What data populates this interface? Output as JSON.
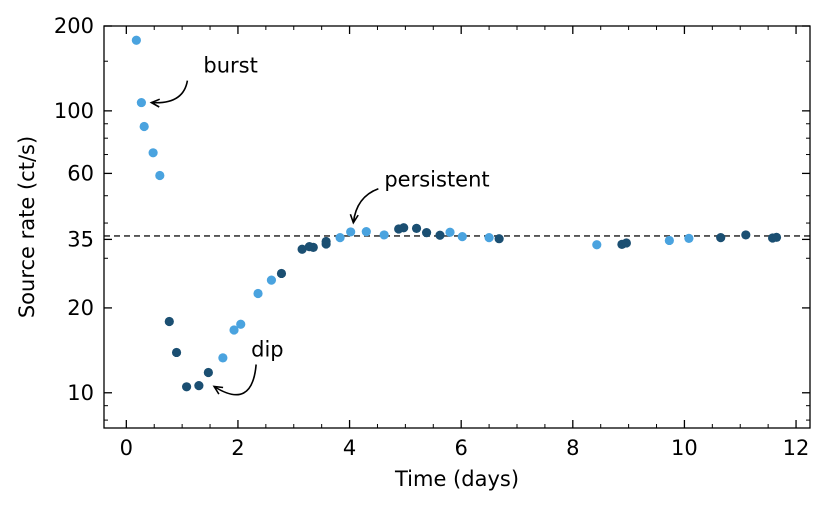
{
  "chart_data": {
    "type": "scatter",
    "title": "",
    "xlabel": "Time (days)",
    "ylabel": "Source rate (ct/s)",
    "xlim": [
      -0.4,
      12.25
    ],
    "ylim": [
      7.5,
      200
    ],
    "yscale": "log",
    "grid": false,
    "x_ticks": [
      0,
      2,
      4,
      6,
      8,
      10,
      12
    ],
    "y_ticks": [
      10,
      20,
      35,
      60,
      100,
      200
    ],
    "colors": {
      "light": "#4aa3df",
      "dark": "#1b4f72",
      "reference_line": "#555555"
    },
    "reference_line": {
      "y": 36,
      "style": "dashed"
    },
    "series": [
      {
        "name": "light",
        "color": "#4aa3df",
        "points": [
          [
            0.18,
            178
          ],
          [
            0.27,
            107
          ],
          [
            0.32,
            88
          ],
          [
            0.48,
            71
          ],
          [
            0.6,
            59
          ],
          [
            1.73,
            13.3
          ],
          [
            1.93,
            16.7
          ],
          [
            2.05,
            17.5
          ],
          [
            2.36,
            22.5
          ],
          [
            2.6,
            25.1
          ],
          [
            3.83,
            35.5
          ],
          [
            4.02,
            37.2
          ],
          [
            4.3,
            37.3
          ],
          [
            4.62,
            36.3
          ],
          [
            5.8,
            37.1
          ],
          [
            6.02,
            35.8
          ],
          [
            6.5,
            35.5
          ],
          [
            8.43,
            33.5
          ],
          [
            9.73,
            34.7
          ],
          [
            10.08,
            35.3
          ]
        ]
      },
      {
        "name": "dark",
        "color": "#1b4f72",
        "points": [
          [
            0.77,
            17.9
          ],
          [
            0.9,
            13.9
          ],
          [
            1.08,
            10.5
          ],
          [
            1.3,
            10.6
          ],
          [
            1.47,
            11.8
          ],
          [
            2.78,
            26.5
          ],
          [
            3.15,
            32.3
          ],
          [
            3.28,
            33.0
          ],
          [
            3.35,
            32.8
          ],
          [
            3.58,
            33.7
          ],
          [
            3.58,
            34.4
          ],
          [
            4.88,
            38.1
          ],
          [
            4.97,
            38.5
          ],
          [
            5.2,
            38.3
          ],
          [
            5.38,
            37.0
          ],
          [
            5.62,
            36.2
          ],
          [
            6.68,
            35.2
          ],
          [
            8.88,
            33.6
          ],
          [
            8.96,
            34.0
          ],
          [
            10.65,
            35.5
          ],
          [
            11.1,
            36.3
          ],
          [
            11.58,
            35.4
          ],
          [
            11.65,
            35.6
          ]
        ]
      }
    ],
    "annotations": [
      {
        "text": "burst",
        "point": [
          0.27,
          107
        ]
      },
      {
        "text": "persistent",
        "point": [
          4.05,
          38.5
        ]
      },
      {
        "text": "dip",
        "point": [
          1.43,
          10.7
        ]
      }
    ]
  }
}
